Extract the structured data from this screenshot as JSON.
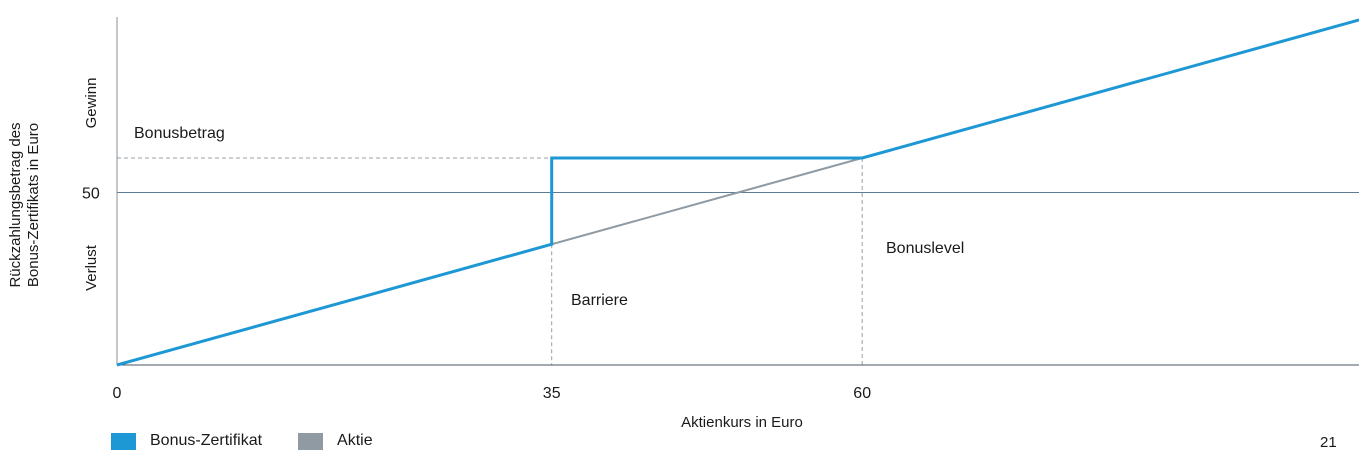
{
  "chart_data": {
    "type": "line",
    "xlabel": "Aktienkurs in Euro",
    "ylabel_line1": "Rückzahlungsbetrag des",
    "ylabel_line2": "Bonus-Zertifikats in Euro",
    "x_ticks": [
      0,
      35,
      60
    ],
    "y_ticks": [
      50
    ],
    "xlim": [
      0,
      100
    ],
    "ylim": [
      0,
      100
    ],
    "y_region_labels": {
      "upper": "Gewinn",
      "lower": "Verlust"
    },
    "bonus_level": 60,
    "barrier": 35,
    "series": [
      {
        "name": "Aktie",
        "color": "#8f9aa3",
        "x": [
          0,
          100
        ],
        "y": [
          0,
          100
        ]
      },
      {
        "name": "Bonus-Zertifikat",
        "color": "#1e98d4",
        "x": [
          0,
          35,
          35,
          60,
          100
        ],
        "y": [
          0,
          35,
          60,
          60,
          100
        ]
      }
    ],
    "annotations": {
      "bonusbetrag": "Bonusbetrag",
      "barriere": "Barriere",
      "bonuslevel": "Bonuslevel"
    },
    "legend": [
      {
        "label": "Bonus-Zertifikat",
        "color": "#1e98d4"
      },
      {
        "label": "Aktie",
        "color": "#8f9aa3"
      }
    ],
    "legend_position": "bottom-left"
  },
  "page": {
    "number": "21"
  }
}
